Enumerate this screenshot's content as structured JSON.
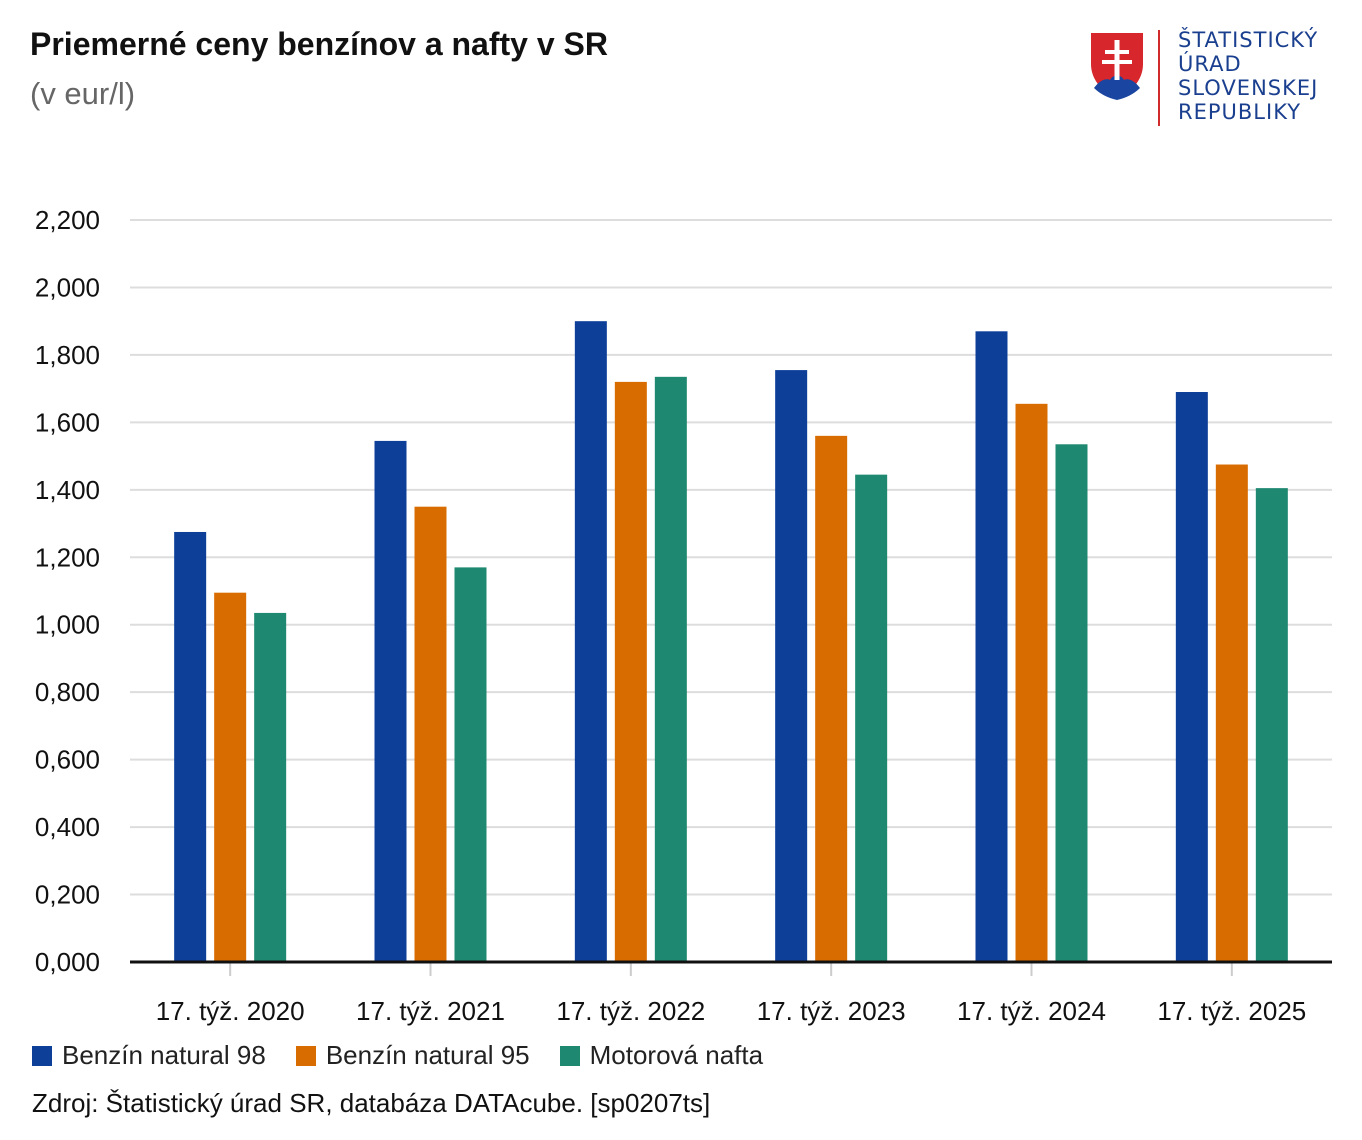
{
  "header": {
    "title": "Priemerné ceny benzínov a nafty v SR",
    "subtitle": "(v eur/l)"
  },
  "logo": {
    "lines": [
      "ŠTATISTICKÝ",
      "ÚRAD",
      "SLOVENSKEJ",
      "REPUBLIKY"
    ]
  },
  "chart_data": {
    "type": "bar",
    "title": "Priemerné ceny benzínov a nafty v SR",
    "subtitle": "(v eur/l)",
    "xlabel": "",
    "ylabel": "",
    "ylim": [
      0,
      2.2
    ],
    "yticks": [
      0,
      0.2,
      0.4,
      0.6,
      0.8,
      1.0,
      1.2,
      1.4,
      1.6,
      1.8,
      2.0,
      2.2
    ],
    "ytick_labels": [
      "0,000",
      "0,200",
      "0,400",
      "0,600",
      "0,800",
      "1,000",
      "1,200",
      "1,400",
      "1,600",
      "1,800",
      "2,000",
      "2,200"
    ],
    "grid": true,
    "legend": "bottom-left",
    "categories": [
      "17. týž. 2020",
      "17. týž. 2021",
      "17. týž. 2022",
      "17. týž. 2023",
      "17. týž. 2024",
      "17. týž. 2025"
    ],
    "series": [
      {
        "name": "Benzín natural 98",
        "color": "#0d3f99",
        "values": [
          1.275,
          1.545,
          1.9,
          1.755,
          1.87,
          1.69
        ]
      },
      {
        "name": "Benzín natural 95",
        "color": "#d96c00",
        "values": [
          1.095,
          1.35,
          1.72,
          1.56,
          1.655,
          1.475
        ]
      },
      {
        "name": "Motorová nafta",
        "color": "#1e8870",
        "values": [
          1.035,
          1.17,
          1.735,
          1.445,
          1.535,
          1.405
        ]
      }
    ]
  },
  "footer": {
    "source": "Zdroj: Štatistický úrad SR, databáza DATAcube. [sp0207ts]"
  }
}
